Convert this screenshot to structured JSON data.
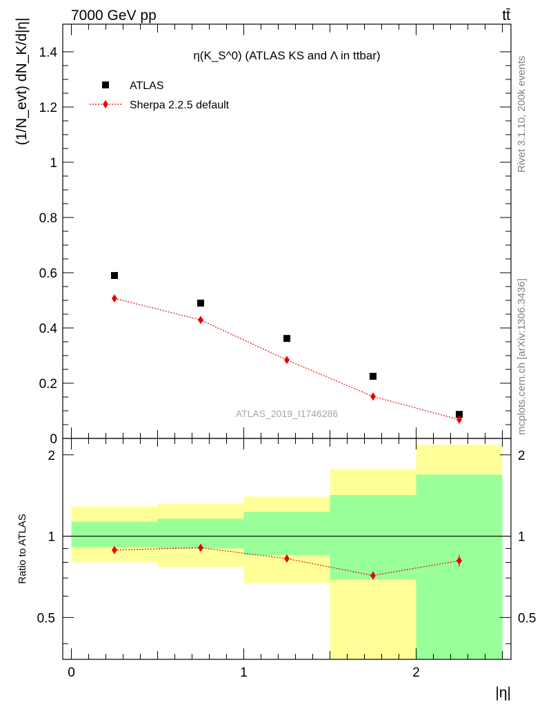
{
  "header": {
    "energy_label": "7000 GeV pp",
    "process_label": "tt̄"
  },
  "side_labels": {
    "rivet": "Rivet 3.1.10,  200k events",
    "mcplots": "mcplots.cern.ch [arXiv:1306.3436]"
  },
  "watermark": "ATLAS_2019_I1746286",
  "chart_data": [
    {
      "type": "scatter",
      "title": "η(K_S^0) (ATLAS KS and Λ in ttbar)",
      "ylabel": "(1/N_evt) dN_K/d|η|",
      "xlabel": "",
      "xlim": [
        -0.05,
        2.55
      ],
      "ylim": [
        0,
        1.5
      ],
      "yticks": [
        "0",
        "0.2",
        "0.4",
        "0.6",
        "0.8",
        "1",
        "1.2",
        "1.4"
      ],
      "legend_position": "top-left",
      "bins": [
        [
          0,
          0.5
        ],
        [
          0.5,
          1.0
        ],
        [
          1.0,
          1.5
        ],
        [
          1.5,
          2.0
        ],
        [
          2.0,
          2.5
        ]
      ],
      "series": [
        {
          "name": "ATLAS",
          "marker": "square",
          "color": "#000000",
          "x": [
            0.25,
            0.75,
            1.25,
            1.75,
            2.25
          ],
          "y": [
            0.59,
            0.49,
            0.362,
            0.225,
            0.087
          ]
        },
        {
          "name": "Sherpa 2.2.5 default",
          "marker": "diamond",
          "line": "dotted",
          "color": "#ee0000",
          "x": [
            0.25,
            0.75,
            1.25,
            1.75,
            2.25
          ],
          "y": [
            0.507,
            0.429,
            0.284,
            0.152,
            0.068
          ]
        }
      ]
    },
    {
      "type": "scatter",
      "title": "",
      "ylabel": "Ratio to ATLAS",
      "xlabel": "|η|",
      "xlim": [
        -0.05,
        2.55
      ],
      "ylim": [
        0.35,
        2.3
      ],
      "yticks": [
        "0.5",
        "1",
        "2"
      ],
      "xticks": [
        "0",
        "1",
        "2"
      ],
      "reference_line": 1,
      "bands": {
        "bins": [
          [
            0,
            0.5
          ],
          [
            0.5,
            1.0
          ],
          [
            1.0,
            1.5
          ],
          [
            1.5,
            2.0
          ],
          [
            2.0,
            2.5
          ]
        ],
        "yellow": {
          "color": "#ffff99",
          "low": [
            0.8,
            0.77,
            0.67,
            0.35,
            0.35
          ],
          "high": [
            1.29,
            1.32,
            1.4,
            1.77,
            2.18
          ]
        },
        "green": {
          "color": "#99ff99",
          "low": [
            0.91,
            0.9,
            0.85,
            0.69,
            0.35
          ],
          "high": [
            1.13,
            1.16,
            1.23,
            1.42,
            1.69
          ]
        }
      },
      "series": [
        {
          "name": "Sherpa 2.2.5 default",
          "marker": "diamond",
          "line": "dotted",
          "color": "#ee0000",
          "x": [
            0.25,
            0.75,
            1.25,
            1.75,
            2.25
          ],
          "y": [
            0.889,
            0.906,
            0.826,
            0.715,
            0.812
          ],
          "err": [
            0.01,
            0.01,
            0.015,
            0.025,
            0.04
          ]
        }
      ]
    }
  ]
}
